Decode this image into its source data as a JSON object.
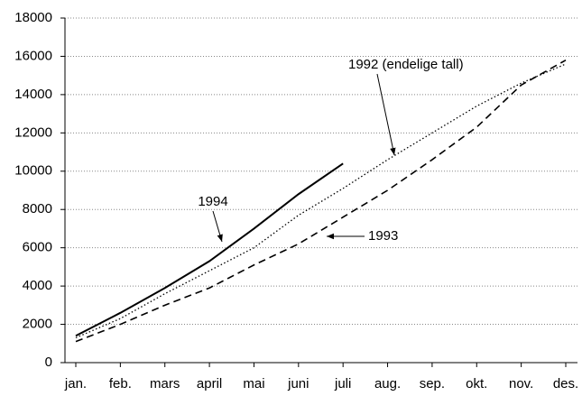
{
  "chart_data": {
    "type": "line",
    "categories": [
      "jan.",
      "feb.",
      "mars",
      "april",
      "mai",
      "juni",
      "juli",
      "aug.",
      "sep.",
      "okt.",
      "nov.",
      "des."
    ],
    "series": [
      {
        "name": "1994",
        "color": "#000000",
        "dash": "solid",
        "values": [
          1400,
          2600,
          3900,
          5300,
          7000,
          8800,
          10400,
          null,
          null,
          null,
          null,
          null
        ]
      },
      {
        "name": "1993",
        "color": "#000000",
        "dash": "dashed",
        "values": [
          1100,
          2000,
          3000,
          3900,
          5100,
          6200,
          7600,
          9000,
          10600,
          12300,
          14500,
          15800
        ]
      },
      {
        "name": "1992 (endelige tall)",
        "color": "#000000",
        "dash": "dotted",
        "values": [
          1300,
          2300,
          3600,
          4800,
          6000,
          7700,
          9100,
          10600,
          12000,
          13400,
          14600,
          15600
        ]
      }
    ],
    "ylim": [
      0,
      18000
    ],
    "yticks": [
      0,
      2000,
      4000,
      6000,
      8000,
      10000,
      12000,
      14000,
      16000,
      18000
    ],
    "grid": true
  }
}
